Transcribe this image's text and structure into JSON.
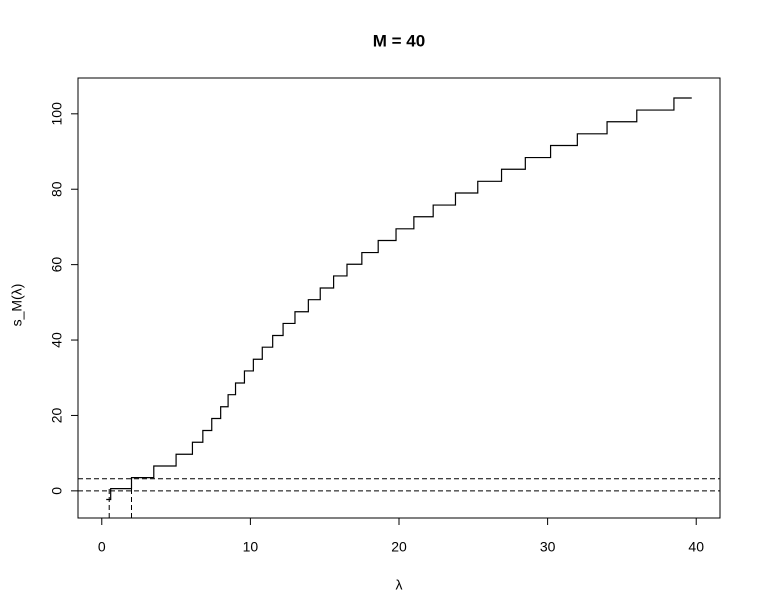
{
  "chart_data": {
    "type": "line",
    "title": "M = 40",
    "x_label": "λ",
    "y_label": "s_M(λ)",
    "x": [
      0.3,
      0.6,
      0.6,
      2.0,
      2.0,
      3.5,
      3.5,
      5.0,
      5.0,
      6.1,
      6.1,
      6.8,
      6.8,
      7.4,
      7.4,
      8.0,
      8.0,
      8.5,
      8.5,
      9.0,
      9.0,
      9.6,
      9.6,
      10.2,
      10.2,
      10.8,
      10.8,
      11.5,
      11.5,
      12.2,
      12.2,
      13.0,
      13.0,
      13.9,
      13.9,
      14.7,
      14.7,
      15.6,
      15.6,
      16.5,
      16.5,
      17.5,
      17.5,
      18.6,
      18.6,
      19.8,
      19.8,
      21.0,
      21.0,
      22.3,
      22.3,
      23.8,
      23.8,
      25.3,
      25.3,
      26.9,
      26.9,
      28.5,
      28.5,
      30.2,
      30.2,
      32.0,
      32.0,
      34.0,
      34.0,
      36.0,
      36.0,
      38.5,
      38.5,
      39.7
    ],
    "values": [
      -2.3,
      -2.3,
      0.6,
      0.6,
      3.5,
      3.5,
      6.6,
      6.6,
      9.7,
      9.7,
      12.9,
      12.9,
      16.0,
      16.0,
      19.2,
      19.2,
      22.3,
      22.3,
      25.5,
      25.5,
      28.6,
      28.6,
      31.8,
      31.8,
      34.9,
      34.9,
      38.1,
      38.1,
      41.2,
      41.2,
      44.4,
      44.4,
      47.5,
      47.5,
      50.7,
      50.7,
      53.8,
      53.8,
      57.0,
      57.0,
      60.1,
      60.1,
      63.2,
      63.2,
      66.4,
      66.4,
      69.5,
      69.5,
      72.7,
      72.7,
      75.8,
      75.8,
      79.0,
      79.0,
      82.1,
      82.1,
      85.3,
      85.3,
      88.4,
      88.4,
      91.6,
      91.6,
      94.7,
      94.7,
      97.9,
      97.9,
      101.0,
      101.0,
      104.2,
      104.2
    ],
    "color": "#000000",
    "hlines": [
      0,
      3.2
    ],
    "vlines": [
      {
        "x": 0.5,
        "y": 0.6
      },
      {
        "x": 2.0,
        "y": 3.3
      }
    ],
    "xlim": [
      -1.6,
      41.6
    ],
    "ylim": [
      -7.2,
      109.5
    ],
    "xticks": [
      0,
      10,
      20,
      30,
      40
    ],
    "yticks": [
      0,
      20,
      40,
      60,
      80,
      100
    ]
  }
}
